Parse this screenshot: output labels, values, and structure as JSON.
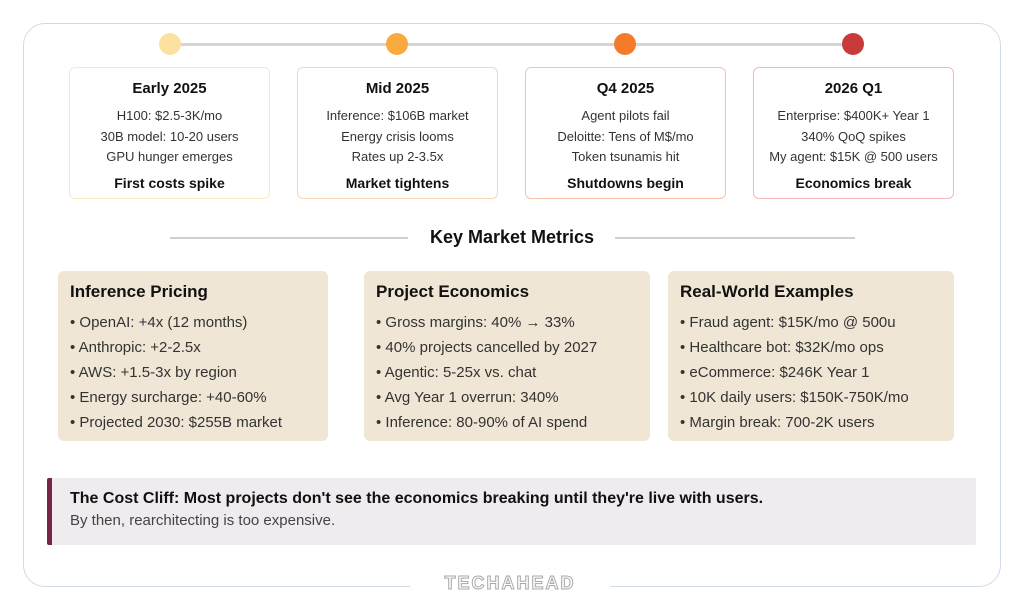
{
  "timeline": {
    "phases": [
      {
        "dot_color": "#fbe2a1",
        "border_color": "#fbe9c6",
        "title": "Early 2025",
        "lines": [
          "H100: $2.5-3K/mo",
          "30B model: 10-20 users",
          "GPU hunger emerges"
        ],
        "summary": "First costs spike"
      },
      {
        "dot_color": "#f9a93d",
        "border_color": "#f9d6b5",
        "title": "Mid 2025",
        "lines": [
          "Inference: $106B market",
          "Energy crisis looms",
          "Rates up 2-3.5x"
        ],
        "summary": "Market tightens"
      },
      {
        "dot_color": "#f47b2a",
        "border_color": "#f7c2a9",
        "title": "Q4 2025",
        "lines": [
          "Agent pilots fail",
          "Deloitte: Tens of M$/mo",
          "Token tsunamis hit"
        ],
        "summary": "Shutdowns begin"
      },
      {
        "dot_color": "#c93a3a",
        "border_color": "#f1b9b9",
        "title": "2026 Q1",
        "lines": [
          "Enterprise: $400K+ Year 1",
          "340% QoQ spikes",
          "My agent: $15K @ 500 users"
        ],
        "summary": "Economics break"
      }
    ]
  },
  "section": {
    "title": "Key Market Metrics"
  },
  "metrics": [
    {
      "title": "Inference Pricing",
      "items": [
        "• OpenAI: +4x (12 months)",
        "• Anthropic: +2-2.5x",
        "• AWS: +1.5-3x by region",
        "• Energy surcharge: +40-60%",
        "• Projected 2030: $255B market"
      ]
    },
    {
      "title": "Project Economics",
      "items": [
        "• Gross margins: 40% → 33%",
        "• 40% projects cancelled by 2027",
        "• Agentic: 5-25x vs. chat",
        "• Avg Year 1 overrun: 340%",
        "• Inference: 80-90% of AI spend"
      ]
    },
    {
      "title": "Real-World Examples",
      "items": [
        "• Fraud agent: $15K/mo @ 500u",
        "• Healthcare bot: $32K/mo ops",
        "• eCommerce: $246K Year 1",
        "• 10K daily users: $150K-750K/mo",
        "• Margin break: 700-2K users"
      ]
    }
  ],
  "callout": {
    "title": "The Cost Cliff: Most projects don't see the economics breaking until they're live with users.",
    "subtitle": "By then, rearchitecting is too expensive.",
    "accent_color": "#7a2349"
  },
  "footer": {
    "logo_text": "TECHAHEAD"
  }
}
